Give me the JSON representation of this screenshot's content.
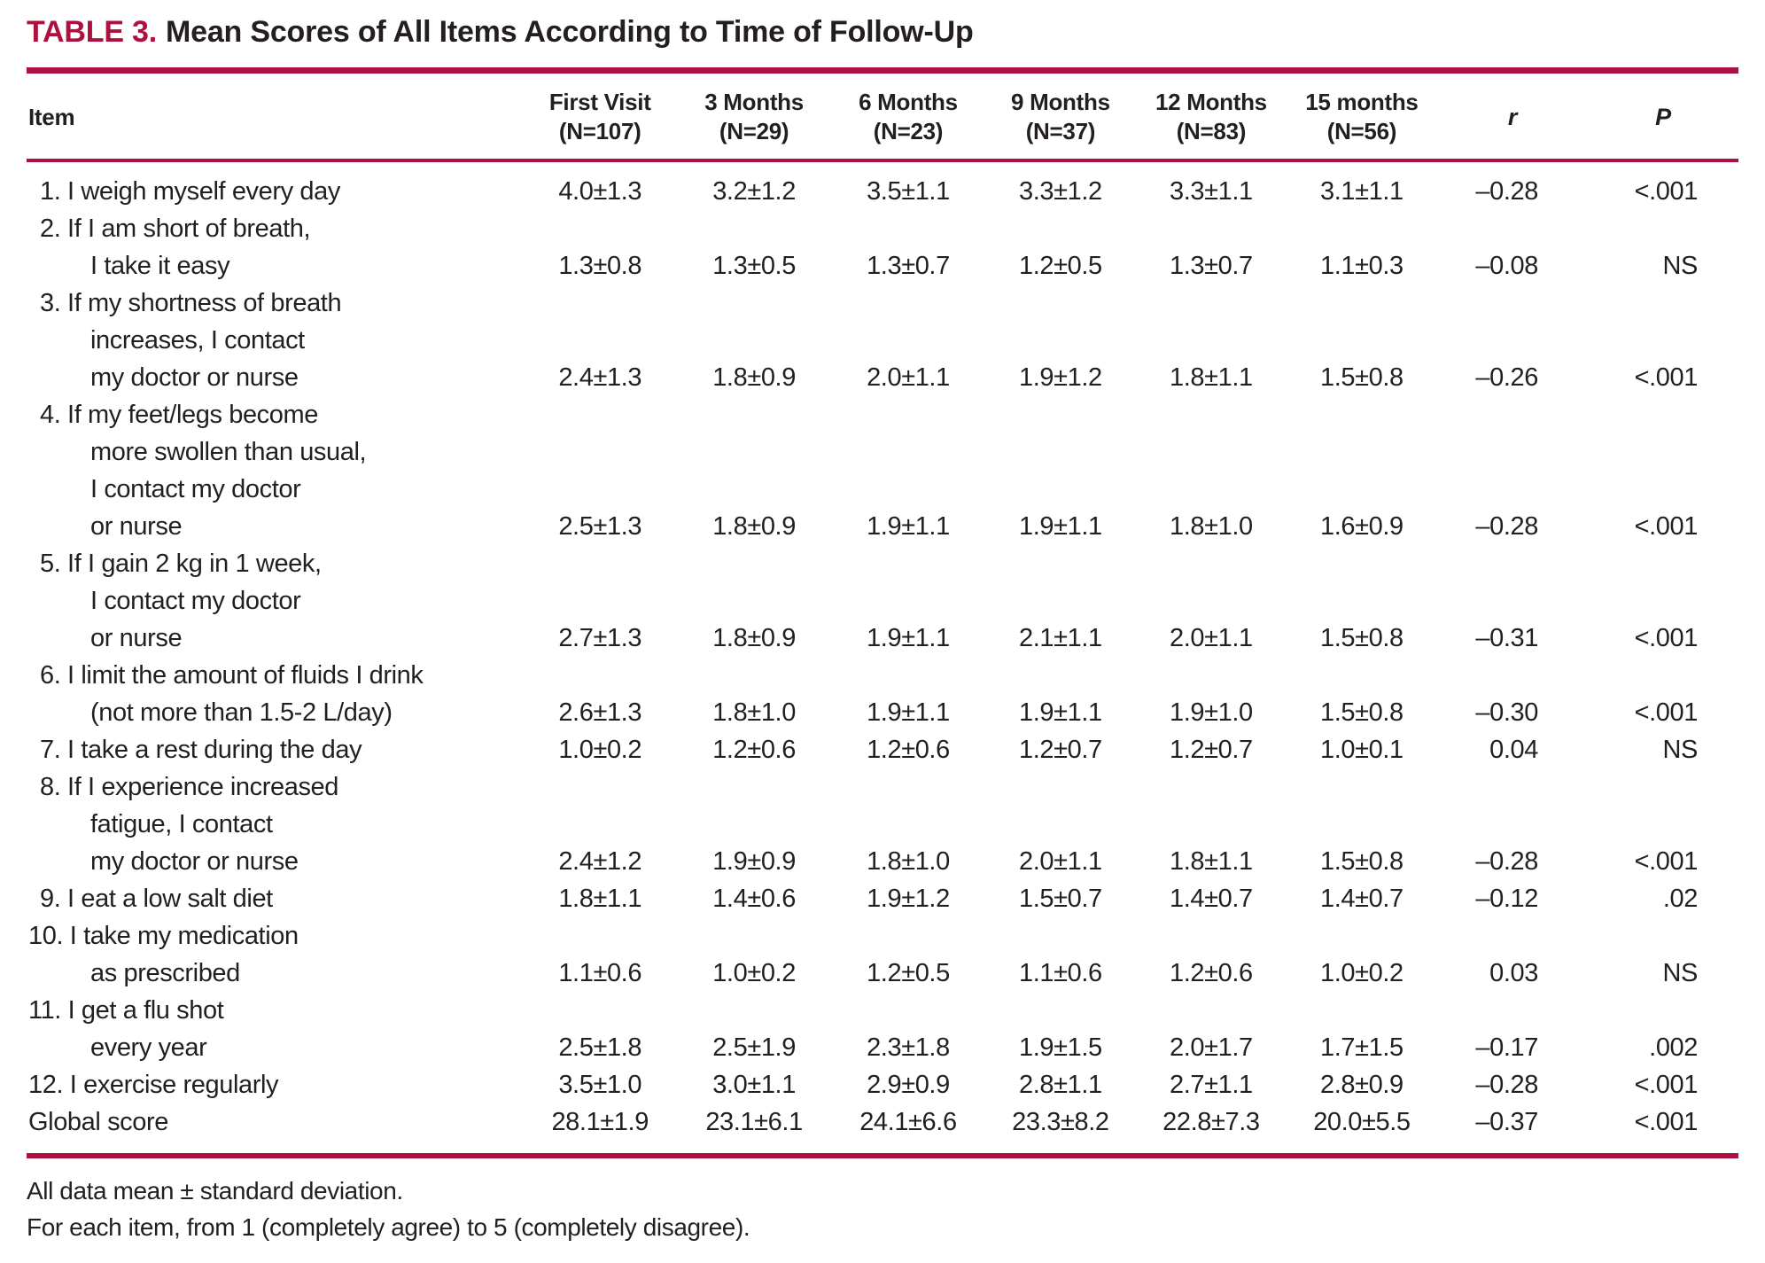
{
  "title": {
    "label": "TABLE 3.",
    "text": "Mean Scores of All Items According to Time of Follow-Up"
  },
  "header": {
    "item_label": "Item",
    "columns": [
      {
        "line1": "First Visit",
        "line2": "(N=107)",
        "italic": false
      },
      {
        "line1": "3 Months",
        "line2": "(N=29)",
        "italic": false
      },
      {
        "line1": "6 Months",
        "line2": "(N=23)",
        "italic": false
      },
      {
        "line1": "9 Months",
        "line2": "(N=37)",
        "italic": false
      },
      {
        "line1": "12 Months",
        "line2": "(N=83)",
        "italic": false
      },
      {
        "line1": "15 months",
        "line2": "(N=56)",
        "italic": false
      },
      {
        "line1": "r",
        "line2": "",
        "italic": true
      },
      {
        "line1": "P",
        "line2": "",
        "italic": true
      }
    ]
  },
  "rows": [
    {
      "item": [
        {
          "text": "1. I weigh myself every day",
          "indent": 1
        }
      ],
      "values": [
        "4.0±1.3",
        "3.2±1.2",
        "3.5±1.1",
        "3.3±1.2",
        "3.3±1.1",
        "3.1±1.1",
        "–0.28",
        "<.001"
      ]
    },
    {
      "item": [
        {
          "text": "2. If I am short of breath,",
          "indent": 1
        },
        {
          "text": "I take it easy",
          "indent": 2
        }
      ],
      "values": [
        "1.3±0.8",
        "1.3±0.5",
        "1.3±0.7",
        "1.2±0.5",
        "1.3±0.7",
        "1.1±0.3",
        "–0.08",
        "NS"
      ]
    },
    {
      "item": [
        {
          "text": "3. If my shortness of breath",
          "indent": 1
        },
        {
          "text": "increases, I contact",
          "indent": 2
        },
        {
          "text": "my doctor or nurse",
          "indent": 2
        }
      ],
      "values": [
        "2.4±1.3",
        "1.8±0.9",
        "2.0±1.1",
        "1.9±1.2",
        "1.8±1.1",
        "1.5±0.8",
        "–0.26",
        "<.001"
      ]
    },
    {
      "item": [
        {
          "text": "4. If my feet/legs become",
          "indent": 1
        },
        {
          "text": "more swollen than usual,",
          "indent": 2
        },
        {
          "text": "I contact my doctor",
          "indent": 2
        },
        {
          "text": "or nurse",
          "indent": 2
        }
      ],
      "values": [
        "2.5±1.3",
        "1.8±0.9",
        "1.9±1.1",
        "1.9±1.1",
        "1.8±1.0",
        "1.6±0.9",
        "–0.28",
        "<.001"
      ]
    },
    {
      "item": [
        {
          "text": "5. If I gain 2 kg in 1 week,",
          "indent": 1
        },
        {
          "text": "I contact my doctor",
          "indent": 2
        },
        {
          "text": "or nurse",
          "indent": 2
        }
      ],
      "values": [
        "2.7±1.3",
        "1.8±0.9",
        "1.9±1.1",
        "2.1±1.1",
        "2.0±1.1",
        "1.5±0.8",
        "–0.31",
        "<.001"
      ]
    },
    {
      "item": [
        {
          "text": "6. I limit the amount of fluids I drink",
          "indent": 1
        },
        {
          "text": "(not more than 1.5-2 L/day)",
          "indent": 2
        }
      ],
      "values": [
        "2.6±1.3",
        "1.8±1.0",
        "1.9±1.1",
        "1.9±1.1",
        "1.9±1.0",
        "1.5±0.8",
        "–0.30",
        "<.001"
      ]
    },
    {
      "item": [
        {
          "text": "7. I take a rest during the day",
          "indent": 1
        }
      ],
      "values": [
        "1.0±0.2",
        "1.2±0.6",
        "1.2±0.6",
        "1.2±0.7",
        "1.2±0.7",
        "1.0±0.1",
        "0.04",
        "NS"
      ]
    },
    {
      "item": [
        {
          "text": "8. If I experience increased",
          "indent": 1
        },
        {
          "text": "fatigue, I contact",
          "indent": 2
        },
        {
          "text": "my doctor or nurse",
          "indent": 2
        }
      ],
      "values": [
        "2.4±1.2",
        "1.9±0.9",
        "1.8±1.0",
        "2.0±1.1",
        "1.8±1.1",
        "1.5±0.8",
        "–0.28",
        "<.001"
      ]
    },
    {
      "item": [
        {
          "text": "9. I eat a low salt diet",
          "indent": 1
        }
      ],
      "values": [
        "1.8±1.1",
        "1.4±0.6",
        "1.9±1.2",
        "1.5±0.7",
        "1.4±0.7",
        "1.4±0.7",
        "–0.12",
        ".02"
      ]
    },
    {
      "item": [
        {
          "text": "10. I take my medication",
          "indent": 0
        },
        {
          "text": "as prescribed",
          "indent": 2
        }
      ],
      "values": [
        "1.1±0.6",
        "1.0±0.2",
        "1.2±0.5",
        "1.1±0.6",
        "1.2±0.6",
        "1.0±0.2",
        "0.03",
        "NS"
      ]
    },
    {
      "item": [
        {
          "text": "11. I get a flu shot",
          "indent": 0
        },
        {
          "text": "every year",
          "indent": 2
        }
      ],
      "values": [
        "2.5±1.8",
        "2.5±1.9",
        "2.3±1.8",
        "1.9±1.5",
        "2.0±1.7",
        "1.7±1.5",
        "–0.17",
        ".002"
      ]
    },
    {
      "item": [
        {
          "text": "12. I exercise regularly",
          "indent": 0
        }
      ],
      "values": [
        "3.5±1.0",
        "3.0±1.1",
        "2.9±0.9",
        "2.8±1.1",
        "2.7±1.1",
        "2.8±0.9",
        "–0.28",
        "<.001"
      ]
    },
    {
      "item": [
        {
          "text": "Global score",
          "indent": 0
        }
      ],
      "values": [
        "28.1±1.9",
        "23.1±6.1",
        "24.1±6.6",
        "23.3±8.2",
        "22.8±7.3",
        "20.0±5.5",
        "–0.37",
        "<.001"
      ]
    }
  ],
  "footnotes": [
    "All data mean ± standard deviation.",
    "For each item, from 1 (completely agree) to 5 (completely disagree)."
  ],
  "colors": {
    "accent": "#AC1140",
    "text": "#231F20"
  }
}
